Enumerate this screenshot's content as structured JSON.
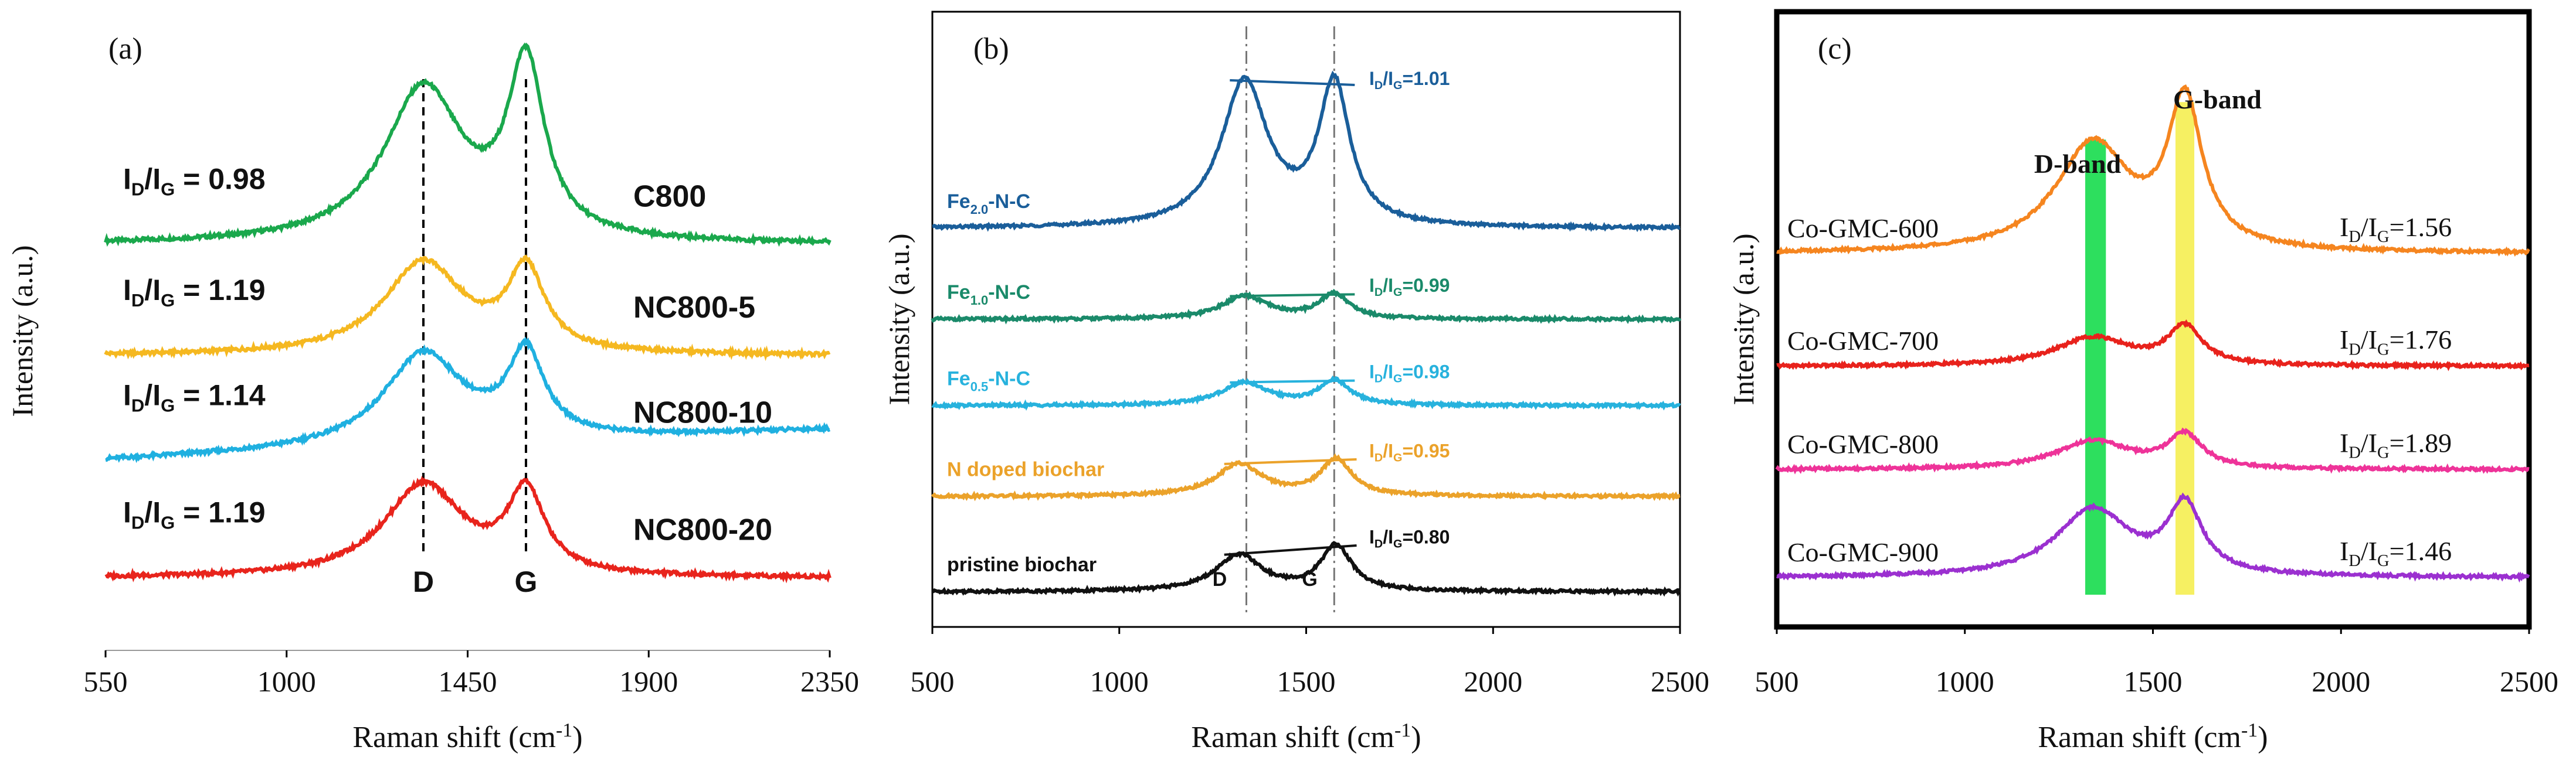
{
  "chart_data": [
    {
      "type": "line",
      "panel_label": "(a)",
      "xlabel": "Raman shift (cm",
      "xlabel_sup": "-1",
      "xlabel_end": ")",
      "ylabel": "Intensity (a.u.)",
      "xlim": [
        550,
        2350
      ],
      "xticks": [
        550,
        1000,
        1450,
        1900,
        2350
      ],
      "reference_lines": [
        {
          "label": "D",
          "x": 1340
        },
        {
          "label": "G",
          "x": 1595
        }
      ],
      "series": [
        {
          "name": "C800",
          "color": "#1aa84c",
          "baseline": 3.0,
          "d_peak": 1.25,
          "g_peak": 1.38,
          "d_center": 1340,
          "g_center": 1595,
          "ratio": {
            "prefix": "I",
            "sub1": "D",
            "mid": "/I",
            "sub2": "G",
            "suffix": " = 0.98"
          }
        },
        {
          "name": "NC800-5",
          "color": "#f5b820",
          "baseline": 2.1,
          "d_peak": 0.75,
          "g_peak": 0.65,
          "d_center": 1340,
          "g_center": 1595,
          "ratio": {
            "prefix": "I",
            "sub1": "D",
            "mid": "/I",
            "sub2": "G",
            "suffix": " = 1.19"
          }
        },
        {
          "name": "NC800-10",
          "color": "#1fb0e0",
          "baseline": 1.25,
          "d_peak": 0.75,
          "g_peak": 0.68,
          "d_center": 1340,
          "g_center": 1595,
          "ratio": {
            "prefix": "I",
            "sub1": "D",
            "mid": "/I",
            "sub2": "G",
            "suffix": " = 1.14"
          }
        },
        {
          "name": "NC800-20",
          "color": "#e8241c",
          "baseline": 0.3,
          "d_peak": 0.75,
          "g_peak": 0.65,
          "d_center": 1340,
          "g_center": 1595,
          "ratio": {
            "prefix": "I",
            "sub1": "D",
            "mid": "/I",
            "sub2": "G",
            "suffix": " = 1.19"
          }
        }
      ]
    },
    {
      "type": "line",
      "panel_label": "(b)",
      "xlabel": "Raman shift (cm",
      "xlabel_sup": "-1",
      "xlabel_end": ")",
      "ylabel": "Intensity (a.u.)",
      "xlim": [
        500,
        2500
      ],
      "xticks": [
        500,
        1000,
        1500,
        2000,
        2500
      ],
      "reference_lines": [
        {
          "label": "D",
          "x": 1340
        },
        {
          "label": "G",
          "x": 1575
        }
      ],
      "series": [
        {
          "name_main": "Fe",
          "name_sub": "2.0",
          "name_rest": "-N-C",
          "color": "#1a5e9a",
          "baseline": 4.0,
          "d_peak": 1.6,
          "g_peak": 1.55,
          "d_center": 1335,
          "g_center": 1575,
          "ratio": {
            "prefix": "I",
            "sub1": "D",
            "mid": "/I",
            "sub2": "G",
            "suffix": "=1.01"
          }
        },
        {
          "name_main": "Fe",
          "name_sub": "1.0",
          "name_rest": "-N-C",
          "color": "#1a8a6a",
          "baseline": 3.0,
          "d_peak": 0.25,
          "g_peak": 0.27,
          "d_center": 1335,
          "g_center": 1575,
          "ratio": {
            "prefix": "I",
            "sub1": "D",
            "mid": "/I",
            "sub2": "G",
            "suffix": "=0.99"
          }
        },
        {
          "name_main": "Fe",
          "name_sub": "0.5",
          "name_rest": "-N-C",
          "color": "#27b2dd",
          "baseline": 2.05,
          "d_peak": 0.25,
          "g_peak": 0.27,
          "d_center": 1335,
          "g_center": 1575,
          "ratio": {
            "prefix": "I",
            "sub1": "D",
            "mid": "/I",
            "sub2": "G",
            "suffix": "=0.98"
          }
        },
        {
          "name_main": "N doped biochar",
          "name_sub": "",
          "name_rest": "",
          "color": "#eba22a",
          "baseline": 1.05,
          "d_peak": 0.35,
          "g_peak": 0.4,
          "d_center": 1320,
          "g_center": 1580,
          "ratio": {
            "prefix": "I",
            "sub1": "D",
            "mid": "/I",
            "sub2": "G",
            "suffix": "=0.95"
          }
        },
        {
          "name_main": "pristine biochar",
          "name_sub": "",
          "name_rest": "",
          "color": "#111111",
          "baseline": 0.0,
          "d_peak": 0.4,
          "g_peak": 0.5,
          "d_center": 1320,
          "g_center": 1580,
          "ratio": {
            "prefix": "I",
            "sub1": "D",
            "mid": "/I",
            "sub2": "G",
            "suffix": "=0.80"
          }
        }
      ],
      "peak_labels": [
        "D",
        "G"
      ]
    },
    {
      "type": "line",
      "panel_label": "(c)",
      "xlabel": "Raman shift (cm",
      "xlabel_sup": "-1",
      "xlabel_end": ")",
      "ylabel": "Intensity (a.u.)",
      "xlim": [
        500,
        2500
      ],
      "xticks": [
        500,
        1000,
        1500,
        2000,
        2500
      ],
      "band_labels": {
        "d": "D-band",
        "g": "G-band"
      },
      "bands": [
        {
          "label": "D-band",
          "from": 1320,
          "to": 1375,
          "color": "#22dd55"
        },
        {
          "label": "G-band",
          "from": 1560,
          "to": 1610,
          "color": "#f5ef5a"
        }
      ],
      "series": [
        {
          "name": "Co-GMC-600",
          "color": "#f5851f",
          "baseline": 3.6,
          "d_peak": 1.15,
          "g_peak": 1.55,
          "d_center": 1340,
          "g_center": 1585,
          "ratio": {
            "prefix": "I",
            "sub1": "D",
            "mid": "/I",
            "sub2": "G",
            "suffix": "=1.56"
          }
        },
        {
          "name": "Co-GMC-700",
          "color": "#e8221c",
          "baseline": 2.4,
          "d_peak": 0.3,
          "g_peak": 0.4,
          "d_center": 1340,
          "g_center": 1585,
          "ratio": {
            "prefix": "I",
            "sub1": "D",
            "mid": "/I",
            "sub2": "G",
            "suffix": "=1.76"
          }
        },
        {
          "name": "Co-GMC-800",
          "color": "#ee3399",
          "baseline": 1.3,
          "d_peak": 0.3,
          "g_peak": 0.35,
          "d_center": 1340,
          "g_center": 1585,
          "ratio": {
            "prefix": "I",
            "sub1": "D",
            "mid": "/I",
            "sub2": "G",
            "suffix": "=1.89"
          }
        },
        {
          "name": "Co-GMC-900",
          "color": "#9b30d0",
          "baseline": 0.15,
          "d_peak": 0.72,
          "g_peak": 0.72,
          "d_center": 1340,
          "g_center": 1585,
          "ratio": {
            "prefix": "I",
            "sub1": "D",
            "mid": "/I",
            "sub2": "G",
            "suffix": "=1.46"
          }
        }
      ]
    }
  ]
}
